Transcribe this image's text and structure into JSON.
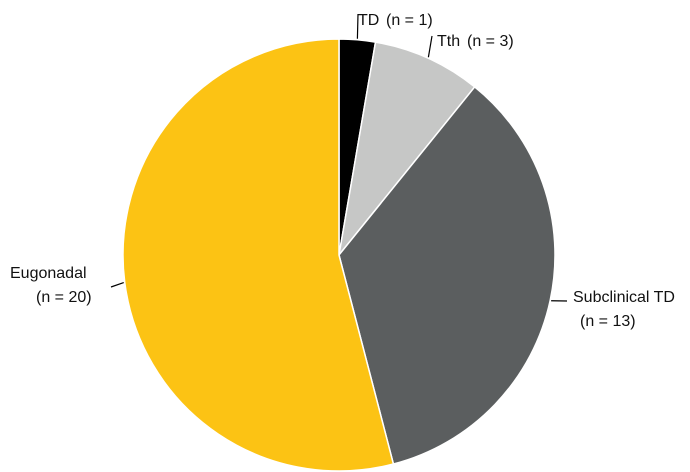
{
  "chart_data": {
    "type": "pie",
    "slices": [
      {
        "label": "TD",
        "count_text": "(n = 1)",
        "value": 1,
        "color": "#000000"
      },
      {
        "label": "Tth",
        "count_text": "(n = 3)",
        "value": 3,
        "color": "#c6c7c6"
      },
      {
        "label": "Subclinical TD",
        "count_text": "(n = 13)",
        "value": 13,
        "color": "#5b5e5f"
      },
      {
        "label": "Eugonadal",
        "count_text": "(n = 20)",
        "value": 20,
        "color": "#fcc314"
      }
    ],
    "start_angle": "12 o'clock",
    "direction": "clockwise"
  }
}
